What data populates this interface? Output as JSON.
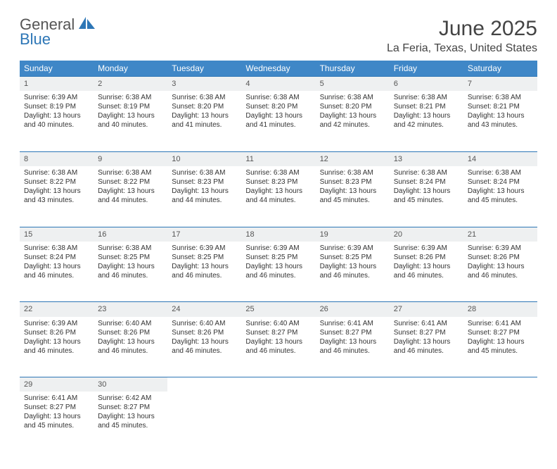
{
  "logo": {
    "line1": "General",
    "line2": "Blue"
  },
  "title": "June 2025",
  "location": "La Feria, Texas, United States",
  "colors": {
    "header_bg": "#3f87c7",
    "accent_line": "#2d76b6",
    "daynum_bg": "#eef0f1",
    "text": "#333333",
    "title_text": "#444444"
  },
  "days_of_week": [
    "Sunday",
    "Monday",
    "Tuesday",
    "Wednesday",
    "Thursday",
    "Friday",
    "Saturday"
  ],
  "weeks": [
    [
      {
        "n": "1",
        "sr": "6:39 AM",
        "ss": "8:19 PM",
        "dl": "13 hours and 40 minutes."
      },
      {
        "n": "2",
        "sr": "6:38 AM",
        "ss": "8:19 PM",
        "dl": "13 hours and 40 minutes."
      },
      {
        "n": "3",
        "sr": "6:38 AM",
        "ss": "8:20 PM",
        "dl": "13 hours and 41 minutes."
      },
      {
        "n": "4",
        "sr": "6:38 AM",
        "ss": "8:20 PM",
        "dl": "13 hours and 41 minutes."
      },
      {
        "n": "5",
        "sr": "6:38 AM",
        "ss": "8:20 PM",
        "dl": "13 hours and 42 minutes."
      },
      {
        "n": "6",
        "sr": "6:38 AM",
        "ss": "8:21 PM",
        "dl": "13 hours and 42 minutes."
      },
      {
        "n": "7",
        "sr": "6:38 AM",
        "ss": "8:21 PM",
        "dl": "13 hours and 43 minutes."
      }
    ],
    [
      {
        "n": "8",
        "sr": "6:38 AM",
        "ss": "8:22 PM",
        "dl": "13 hours and 43 minutes."
      },
      {
        "n": "9",
        "sr": "6:38 AM",
        "ss": "8:22 PM",
        "dl": "13 hours and 44 minutes."
      },
      {
        "n": "10",
        "sr": "6:38 AM",
        "ss": "8:23 PM",
        "dl": "13 hours and 44 minutes."
      },
      {
        "n": "11",
        "sr": "6:38 AM",
        "ss": "8:23 PM",
        "dl": "13 hours and 44 minutes."
      },
      {
        "n": "12",
        "sr": "6:38 AM",
        "ss": "8:23 PM",
        "dl": "13 hours and 45 minutes."
      },
      {
        "n": "13",
        "sr": "6:38 AM",
        "ss": "8:24 PM",
        "dl": "13 hours and 45 minutes."
      },
      {
        "n": "14",
        "sr": "6:38 AM",
        "ss": "8:24 PM",
        "dl": "13 hours and 45 minutes."
      }
    ],
    [
      {
        "n": "15",
        "sr": "6:38 AM",
        "ss": "8:24 PM",
        "dl": "13 hours and 46 minutes."
      },
      {
        "n": "16",
        "sr": "6:38 AM",
        "ss": "8:25 PM",
        "dl": "13 hours and 46 minutes."
      },
      {
        "n": "17",
        "sr": "6:39 AM",
        "ss": "8:25 PM",
        "dl": "13 hours and 46 minutes."
      },
      {
        "n": "18",
        "sr": "6:39 AM",
        "ss": "8:25 PM",
        "dl": "13 hours and 46 minutes."
      },
      {
        "n": "19",
        "sr": "6:39 AM",
        "ss": "8:25 PM",
        "dl": "13 hours and 46 minutes."
      },
      {
        "n": "20",
        "sr": "6:39 AM",
        "ss": "8:26 PM",
        "dl": "13 hours and 46 minutes."
      },
      {
        "n": "21",
        "sr": "6:39 AM",
        "ss": "8:26 PM",
        "dl": "13 hours and 46 minutes."
      }
    ],
    [
      {
        "n": "22",
        "sr": "6:39 AM",
        "ss": "8:26 PM",
        "dl": "13 hours and 46 minutes."
      },
      {
        "n": "23",
        "sr": "6:40 AM",
        "ss": "8:26 PM",
        "dl": "13 hours and 46 minutes."
      },
      {
        "n": "24",
        "sr": "6:40 AM",
        "ss": "8:26 PM",
        "dl": "13 hours and 46 minutes."
      },
      {
        "n": "25",
        "sr": "6:40 AM",
        "ss": "8:27 PM",
        "dl": "13 hours and 46 minutes."
      },
      {
        "n": "26",
        "sr": "6:41 AM",
        "ss": "8:27 PM",
        "dl": "13 hours and 46 minutes."
      },
      {
        "n": "27",
        "sr": "6:41 AM",
        "ss": "8:27 PM",
        "dl": "13 hours and 46 minutes."
      },
      {
        "n": "28",
        "sr": "6:41 AM",
        "ss": "8:27 PM",
        "dl": "13 hours and 45 minutes."
      }
    ],
    [
      {
        "n": "29",
        "sr": "6:41 AM",
        "ss": "8:27 PM",
        "dl": "13 hours and 45 minutes."
      },
      {
        "n": "30",
        "sr": "6:42 AM",
        "ss": "8:27 PM",
        "dl": "13 hours and 45 minutes."
      },
      null,
      null,
      null,
      null,
      null
    ]
  ],
  "labels": {
    "sunrise": "Sunrise: ",
    "sunset": "Sunset: ",
    "daylight": "Daylight: "
  }
}
